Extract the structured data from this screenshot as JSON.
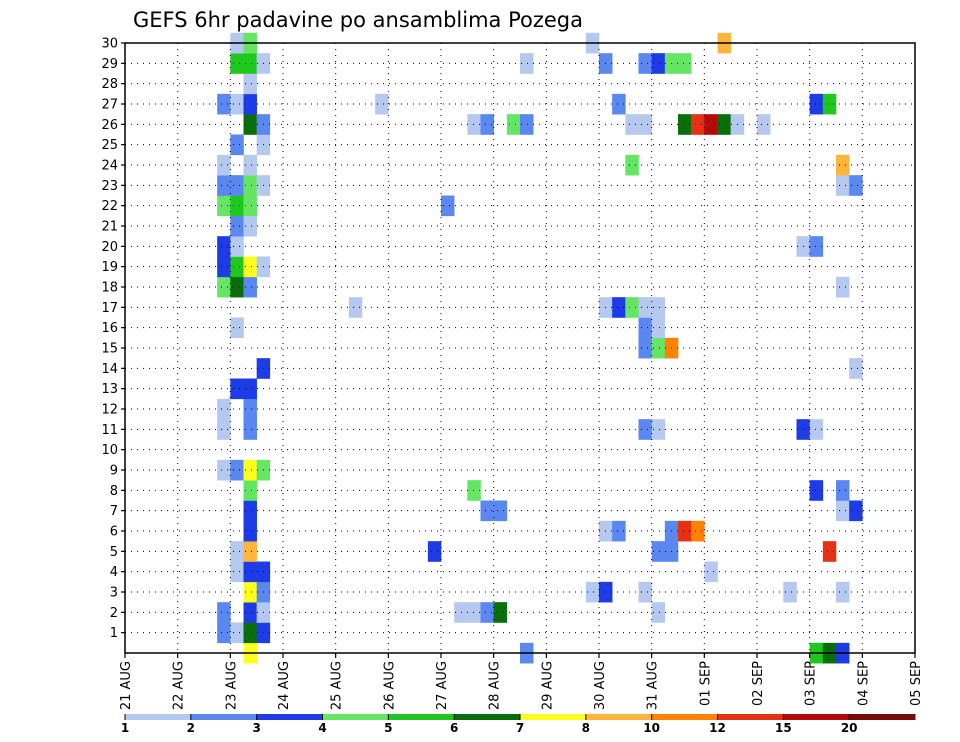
{
  "chart_data": {
    "type": "heatmap",
    "title": "GEFS 6hr padavine po ansamblima Pozega",
    "x_ticks": [
      "21 AUG",
      "22 AUG",
      "23 AUG",
      "24 AUG",
      "25 AUG",
      "26 AUG",
      "27 AUG",
      "28 AUG",
      "29 AUG",
      "30 AUG",
      "31 AUG",
      "01 SEP",
      "02 SEP",
      "03 SEP",
      "04 SEP",
      "05 SEP"
    ],
    "y_ticks": [
      "1",
      "2",
      "3",
      "4",
      "5",
      "6",
      "7",
      "8",
      "9",
      "10",
      "11",
      "12",
      "13",
      "14",
      "15",
      "16",
      "17",
      "18",
      "19",
      "20",
      "21",
      "22",
      "23",
      "24",
      "25",
      "26",
      "27",
      "28",
      "29",
      "30"
    ],
    "steps_per_day": 4,
    "legend_labels": [
      "1",
      "2",
      "3",
      "4",
      "5",
      "6",
      "7",
      "8",
      "10",
      "12",
      "15",
      "20"
    ],
    "colors": [
      "#b4c8f0",
      "#5a87f0",
      "#1e3ce6",
      "#64e664",
      "#1ec81e",
      "#0a6e0a",
      "#ffff1e",
      "#ffb43c",
      "#ff8200",
      "#e63214",
      "#b40a0a",
      "#780a0a"
    ],
    "grid": true,
    "cells": [
      [
        0,
        9,
        "#ffff1e"
      ],
      [
        0,
        30,
        "#5a87f0"
      ],
      [
        0,
        52,
        "#1ec81e"
      ],
      [
        0,
        53,
        "#0a6e0a"
      ],
      [
        0,
        54,
        "#1e3ce6"
      ],
      [
        1,
        7,
        "#5a87f0"
      ],
      [
        1,
        8,
        "#b4c8f0"
      ],
      [
        1,
        9,
        "#0a6e0a"
      ],
      [
        1,
        10,
        "#1e3ce6"
      ],
      [
        2,
        7,
        "#5a87f0"
      ],
      [
        2,
        9,
        "#1e3ce6"
      ],
      [
        2,
        10,
        "#b4c8f0"
      ],
      [
        2,
        25,
        "#b4c8f0"
      ],
      [
        2,
        26,
        "#b4c8f0"
      ],
      [
        2,
        27,
        "#5a87f0"
      ],
      [
        2,
        28,
        "#0a6e0a"
      ],
      [
        2,
        40,
        "#b4c8f0"
      ],
      [
        3,
        9,
        "#ffff1e"
      ],
      [
        3,
        10,
        "#5a87f0"
      ],
      [
        3,
        35,
        "#b4c8f0"
      ],
      [
        3,
        36,
        "#1e3ce6"
      ],
      [
        3,
        39,
        "#b4c8f0"
      ],
      [
        3,
        50,
        "#b4c8f0"
      ],
      [
        3,
        54,
        "#b4c8f0"
      ],
      [
        4,
        8,
        "#b4c8f0"
      ],
      [
        4,
        9,
        "#1e3ce6"
      ],
      [
        4,
        10,
        "#1e3ce6"
      ],
      [
        4,
        44,
        "#b4c8f0"
      ],
      [
        5,
        8,
        "#b4c8f0"
      ],
      [
        5,
        9,
        "#ffb43c"
      ],
      [
        5,
        23,
        "#1e3ce6"
      ],
      [
        5,
        40,
        "#5a87f0"
      ],
      [
        5,
        41,
        "#5a87f0"
      ],
      [
        5,
        53,
        "#e63214"
      ],
      [
        6,
        9,
        "#1e3ce6"
      ],
      [
        6,
        36,
        "#b4c8f0"
      ],
      [
        6,
        37,
        "#5a87f0"
      ],
      [
        6,
        41,
        "#5a87f0"
      ],
      [
        6,
        42,
        "#e63214"
      ],
      [
        6,
        43,
        "#ff8200"
      ],
      [
        7,
        9,
        "#1e3ce6"
      ],
      [
        7,
        27,
        "#5a87f0"
      ],
      [
        7,
        28,
        "#5a87f0"
      ],
      [
        7,
        54,
        "#b4c8f0"
      ],
      [
        7,
        55,
        "#1e3ce6"
      ],
      [
        8,
        9,
        "#64e664"
      ],
      [
        8,
        26,
        "#64e664"
      ],
      [
        8,
        52,
        "#1e3ce6"
      ],
      [
        8,
        54,
        "#5a87f0"
      ],
      [
        9,
        7,
        "#b4c8f0"
      ],
      [
        9,
        8,
        "#5a87f0"
      ],
      [
        9,
        9,
        "#ffff1e"
      ],
      [
        9,
        10,
        "#64e664"
      ],
      [
        11,
        7,
        "#b4c8f0"
      ],
      [
        11,
        9,
        "#5a87f0"
      ],
      [
        11,
        39,
        "#5a87f0"
      ],
      [
        11,
        40,
        "#b4c8f0"
      ],
      [
        11,
        51,
        "#1e3ce6"
      ],
      [
        11,
        52,
        "#b4c8f0"
      ],
      [
        12,
        7,
        "#b4c8f0"
      ],
      [
        12,
        9,
        "#5a87f0"
      ],
      [
        13,
        8,
        "#1e3ce6"
      ],
      [
        13,
        9,
        "#1e3ce6"
      ],
      [
        14,
        10,
        "#1e3ce6"
      ],
      [
        14,
        55,
        "#b4c8f0"
      ],
      [
        15,
        39,
        "#5a87f0"
      ],
      [
        15,
        40,
        "#64e664"
      ],
      [
        15,
        41,
        "#ff8200"
      ],
      [
        16,
        8,
        "#b4c8f0"
      ],
      [
        16,
        39,
        "#5a87f0"
      ],
      [
        16,
        40,
        "#b4c8f0"
      ],
      [
        17,
        17,
        "#b4c8f0"
      ],
      [
        17,
        36,
        "#b4c8f0"
      ],
      [
        17,
        37,
        "#1e3ce6"
      ],
      [
        17,
        38,
        "#64e664"
      ],
      [
        17,
        39,
        "#b4c8f0"
      ],
      [
        17,
        40,
        "#b4c8f0"
      ],
      [
        18,
        7,
        "#64e664"
      ],
      [
        18,
        8,
        "#0a6e0a"
      ],
      [
        18,
        9,
        "#5a87f0"
      ],
      [
        18,
        54,
        "#b4c8f0"
      ],
      [
        19,
        7,
        "#1e3ce6"
      ],
      [
        19,
        8,
        "#1ec81e"
      ],
      [
        19,
        9,
        "#ffff1e"
      ],
      [
        19,
        10,
        "#b4c8f0"
      ],
      [
        20,
        7,
        "#1e3ce6"
      ],
      [
        20,
        8,
        "#b4c8f0"
      ],
      [
        20,
        51,
        "#b4c8f0"
      ],
      [
        20,
        52,
        "#5a87f0"
      ],
      [
        21,
        8,
        "#5a87f0"
      ],
      [
        21,
        9,
        "#b4c8f0"
      ],
      [
        22,
        7,
        "#64e664"
      ],
      [
        22,
        8,
        "#1ec81e"
      ],
      [
        22,
        9,
        "#64e664"
      ],
      [
        22,
        24,
        "#5a87f0"
      ],
      [
        23,
        7,
        "#5a87f0"
      ],
      [
        23,
        8,
        "#5a87f0"
      ],
      [
        23,
        9,
        "#64e664"
      ],
      [
        23,
        10,
        "#b4c8f0"
      ],
      [
        23,
        54,
        "#b4c8f0"
      ],
      [
        23,
        55,
        "#5a87f0"
      ],
      [
        24,
        7,
        "#b4c8f0"
      ],
      [
        24,
        9,
        "#b4c8f0"
      ],
      [
        24,
        38,
        "#64e664"
      ],
      [
        24,
        54,
        "#ffb43c"
      ],
      [
        25,
        8,
        "#5a87f0"
      ],
      [
        25,
        10,
        "#b4c8f0"
      ],
      [
        26,
        9,
        "#0a6e0a"
      ],
      [
        26,
        10,
        "#5a87f0"
      ],
      [
        26,
        26,
        "#b4c8f0"
      ],
      [
        26,
        27,
        "#5a87f0"
      ],
      [
        26,
        29,
        "#64e664"
      ],
      [
        26,
        30,
        "#5a87f0"
      ],
      [
        26,
        38,
        "#b4c8f0"
      ],
      [
        26,
        39,
        "#b4c8f0"
      ],
      [
        26,
        42,
        "#0a6e0a"
      ],
      [
        26,
        43,
        "#e63214"
      ],
      [
        26,
        44,
        "#b40a0a"
      ],
      [
        26,
        45,
        "#0a6e0a"
      ],
      [
        26,
        46,
        "#b4c8f0"
      ],
      [
        26,
        48,
        "#b4c8f0"
      ],
      [
        27,
        7,
        "#5a87f0"
      ],
      [
        27,
        8,
        "#b4c8f0"
      ],
      [
        27,
        9,
        "#1e3ce6"
      ],
      [
        27,
        19,
        "#b4c8f0"
      ],
      [
        27,
        37,
        "#5a87f0"
      ],
      [
        27,
        52,
        "#1e3ce6"
      ],
      [
        27,
        53,
        "#1ec81e"
      ],
      [
        28,
        9,
        "#b4c8f0"
      ],
      [
        29,
        8,
        "#1ec81e"
      ],
      [
        29,
        9,
        "#1ec81e"
      ],
      [
        29,
        10,
        "#b4c8f0"
      ],
      [
        29,
        30,
        "#b4c8f0"
      ],
      [
        29,
        36,
        "#5a87f0"
      ],
      [
        29,
        39,
        "#5a87f0"
      ],
      [
        29,
        40,
        "#1e3ce6"
      ],
      [
        29,
        41,
        "#64e664"
      ],
      [
        29,
        42,
        "#64e664"
      ],
      [
        30,
        8,
        "#b4c8f0"
      ],
      [
        30,
        9,
        "#64e664"
      ],
      [
        30,
        35,
        "#b4c8f0"
      ],
      [
        30,
        45,
        "#ffb43c"
      ]
    ]
  }
}
